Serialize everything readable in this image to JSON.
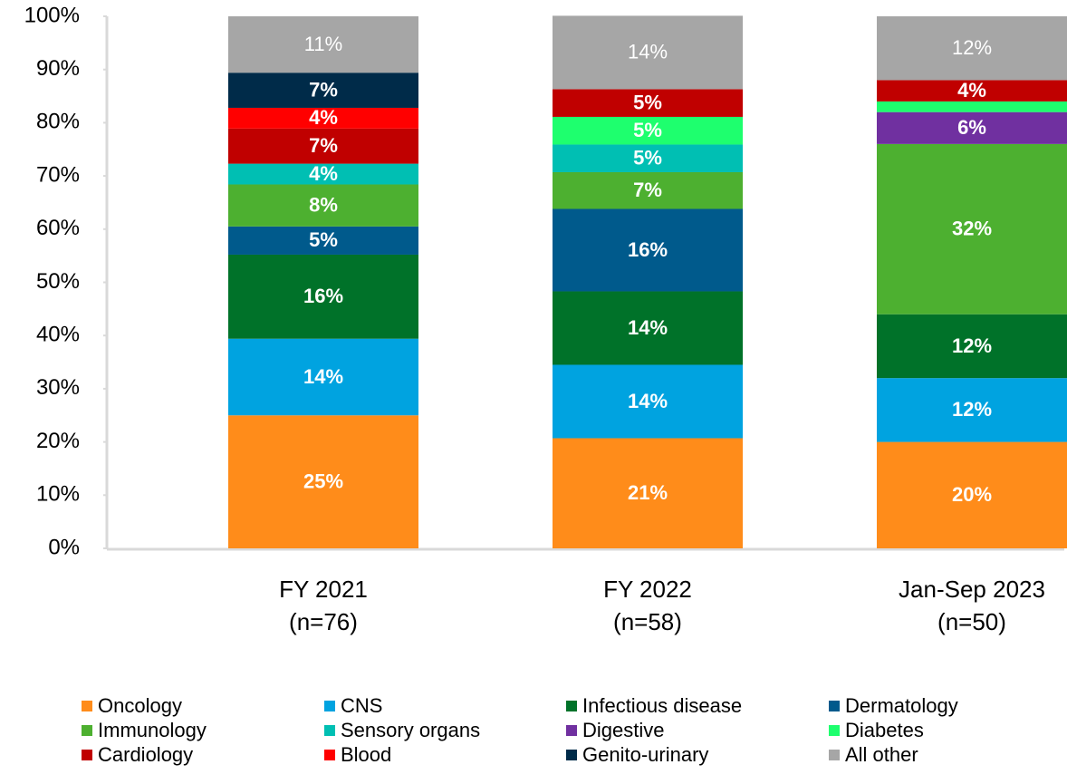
{
  "chart_data": {
    "type": "stacked_bar",
    "categories": [
      "FY 2021",
      "FY 2022",
      "Jan-Sep 2023"
    ],
    "category_sublabels": [
      "(n=76)",
      "(n=58)",
      "(n=50)"
    ],
    "ylim": [
      0,
      100
    ],
    "yticks": [
      {
        "value": 0,
        "label": "0%"
      },
      {
        "value": 10,
        "label": "10%"
      },
      {
        "value": 20,
        "label": "20%"
      },
      {
        "value": 30,
        "label": "30%"
      },
      {
        "value": 40,
        "label": "40%"
      },
      {
        "value": 50,
        "label": "50%"
      },
      {
        "value": 60,
        "label": "60%"
      },
      {
        "value": 70,
        "label": "70%"
      },
      {
        "value": 80,
        "label": "80%"
      },
      {
        "value": 90,
        "label": "90%"
      },
      {
        "value": 100,
        "label": "100%"
      }
    ],
    "grid": false,
    "legend": "bottom",
    "series": [
      {
        "name": "Oncology",
        "color": "#ff8c1a",
        "values": [
          25.0,
          20.7,
          20.0
        ],
        "value_labels": [
          "25%",
          "21%",
          "20%"
        ]
      },
      {
        "name": "CNS",
        "color": "#00a3e0",
        "values": [
          14.4,
          13.8,
          12.0
        ],
        "value_labels": [
          "14%",
          "14%",
          "12%"
        ]
      },
      {
        "name": "Infectious disease",
        "color": "#007229",
        "values": [
          15.8,
          13.8,
          12.0
        ],
        "value_labels": [
          "16%",
          "14%",
          "12%"
        ]
      },
      {
        "name": "Dermatology",
        "color": "#005a8c",
        "values": [
          5.3,
          15.5,
          null
        ],
        "value_labels": [
          "5%",
          "16%",
          null
        ]
      },
      {
        "name": "Immunology",
        "color": "#4db030",
        "values": [
          7.9,
          6.9,
          32.0
        ],
        "value_labels": [
          "8%",
          "7%",
          "32%"
        ]
      },
      {
        "name": "Sensory organs",
        "color": "#00bfb3",
        "values": [
          3.9,
          5.2,
          null
        ],
        "value_labels": [
          "4%",
          "5%",
          null
        ]
      },
      {
        "name": "Digestive",
        "color": "#7030a0",
        "values": [
          null,
          null,
          6.0
        ],
        "value_labels": [
          null,
          null,
          "6%"
        ]
      },
      {
        "name": "Diabetes",
        "color": "#1eff6e",
        "values": [
          null,
          5.2,
          2.0
        ],
        "value_labels": [
          null,
          "5%",
          null
        ]
      },
      {
        "name": "Cardiology",
        "color": "#c00000",
        "values": [
          6.6,
          5.2,
          4.0
        ],
        "value_labels": [
          "7%",
          "5%",
          "4%"
        ]
      },
      {
        "name": "Blood",
        "color": "#ff0000",
        "values": [
          3.9,
          null,
          null
        ],
        "value_labels": [
          "4%",
          null,
          null
        ]
      },
      {
        "name": "Genito-urinary",
        "color": "#002b49",
        "values": [
          6.6,
          null,
          null
        ],
        "value_labels": [
          "7%",
          null,
          null
        ]
      },
      {
        "name": "All other",
        "color": "#a6a6a6",
        "values": [
          10.6,
          13.8,
          12.0
        ],
        "value_labels": [
          "11%",
          "14%",
          "12%"
        ]
      }
    ]
  }
}
